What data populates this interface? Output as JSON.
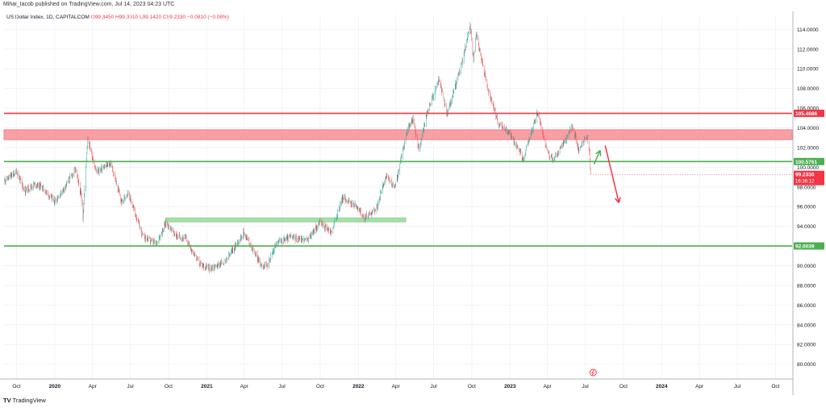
{
  "header": {
    "published": "Mihai_Iacob published on TradingView.com, Jul 14, 2023 04:23 UTC",
    "symbol": "US Dollar Index, 1D, CAPITALCOM",
    "ohlc": "O99.3450 H99.3910 L99.1420 C99.2330 −0.0810 (−0.08%)"
  },
  "footer": {
    "brand": "TradingView"
  },
  "chart_data": {
    "type": "candlestick",
    "ylim": [
      78.5,
      115.5
    ],
    "y_ticks": [
      "80.0000",
      "82.0000",
      "84.0000",
      "86.0000",
      "88.0000",
      "90.0000",
      "92.0000",
      "94.0000",
      "96.0000",
      "98.0000",
      "100.0000",
      "102.0000",
      "104.0000",
      "106.0000",
      "108.0000",
      "110.0000",
      "112.0000",
      "114.0000"
    ],
    "x_range": [
      "2019-09-01",
      "2024-11-10"
    ],
    "x_ticks": [
      {
        "date": "2019-10-01",
        "label": "Oct"
      },
      {
        "date": "2020-01-01",
        "label": "2020"
      },
      {
        "date": "2020-04-01",
        "label": "Apr"
      },
      {
        "date": "2020-07-01",
        "label": "Jul"
      },
      {
        "date": "2020-10-01",
        "label": "Oct"
      },
      {
        "date": "2021-01-01",
        "label": "2021"
      },
      {
        "date": "2021-04-01",
        "label": "Apr"
      },
      {
        "date": "2021-07-01",
        "label": "Jul"
      },
      {
        "date": "2021-10-01",
        "label": "Oct"
      },
      {
        "date": "2022-01-01",
        "label": "2022"
      },
      {
        "date": "2022-04-01",
        "label": "Apr"
      },
      {
        "date": "2022-07-01",
        "label": "Jul"
      },
      {
        "date": "2022-10-01",
        "label": "Oct"
      },
      {
        "date": "2023-01-01",
        "label": "2023"
      },
      {
        "date": "2023-04-01",
        "label": "Apr"
      },
      {
        "date": "2023-07-01",
        "label": "Jul"
      },
      {
        "date": "2023-10-01",
        "label": "Oct"
      },
      {
        "date": "2024-01-01",
        "label": "2024"
      },
      {
        "date": "2024-04-01",
        "label": "Apr"
      },
      {
        "date": "2024-07-01",
        "label": "Jul"
      },
      {
        "date": "2024-10-01",
        "label": "Oct"
      }
    ],
    "price_path": [
      [
        "2019-09-01",
        98.6
      ],
      [
        "2019-09-25",
        99.3
      ],
      [
        "2019-10-01",
        99.6
      ],
      [
        "2019-10-20",
        97.6
      ],
      [
        "2019-11-15",
        98.3
      ],
      [
        "2019-12-01",
        98.0
      ],
      [
        "2019-12-31",
        96.5
      ],
      [
        "2020-01-15",
        97.3
      ],
      [
        "2020-02-20",
        99.8
      ],
      [
        "2020-03-05",
        97.0
      ],
      [
        "2020-03-09",
        94.9
      ],
      [
        "2020-03-20",
        103.0
      ],
      [
        "2020-04-10",
        99.5
      ],
      [
        "2020-05-15",
        100.4
      ],
      [
        "2020-06-10",
        96.4
      ],
      [
        "2020-06-25",
        97.5
      ],
      [
        "2020-07-31",
        93.0
      ],
      [
        "2020-09-01",
        92.2
      ],
      [
        "2020-09-25",
        94.4
      ],
      [
        "2020-10-20",
        93.0
      ],
      [
        "2020-11-10",
        92.8
      ],
      [
        "2020-12-15",
        90.2
      ],
      [
        "2021-01-06",
        89.7
      ],
      [
        "2021-02-15",
        90.4
      ],
      [
        "2021-03-31",
        93.4
      ],
      [
        "2021-05-10",
        90.2
      ],
      [
        "2021-05-25",
        89.9
      ],
      [
        "2021-06-18",
        92.3
      ],
      [
        "2021-07-20",
        92.9
      ],
      [
        "2021-08-31",
        92.6
      ],
      [
        "2021-09-30",
        94.4
      ],
      [
        "2021-10-28",
        93.4
      ],
      [
        "2021-11-24",
        96.9
      ],
      [
        "2021-12-31",
        95.9
      ],
      [
        "2022-01-14",
        94.8
      ],
      [
        "2022-02-15",
        95.9
      ],
      [
        "2022-03-07",
        99.1
      ],
      [
        "2022-03-30",
        97.9
      ],
      [
        "2022-04-28",
        103.7
      ],
      [
        "2022-05-12",
        104.9
      ],
      [
        "2022-05-27",
        101.7
      ],
      [
        "2022-06-14",
        105.3
      ],
      [
        "2022-07-14",
        109.0
      ],
      [
        "2022-08-02",
        105.3
      ],
      [
        "2022-09-07",
        110.6
      ],
      [
        "2022-09-27",
        114.4
      ],
      [
        "2022-10-05",
        110.9
      ],
      [
        "2022-10-12",
        113.5
      ],
      [
        "2022-11-10",
        107.6
      ],
      [
        "2022-12-05",
        104.3
      ],
      [
        "2022-12-30",
        103.5
      ],
      [
        "2023-01-20",
        102.0
      ],
      [
        "2023-02-01",
        100.8
      ],
      [
        "2023-03-08",
        105.6
      ],
      [
        "2023-03-31",
        101.7
      ],
      [
        "2023-04-14",
        100.7
      ],
      [
        "2023-04-28",
        101.5
      ],
      [
        "2023-05-31",
        104.2
      ],
      [
        "2023-06-15",
        101.8
      ],
      [
        "2023-06-30",
        102.9
      ],
      [
        "2023-07-06",
        102.8
      ],
      [
        "2023-07-11",
        101.5
      ],
      [
        "2023-07-13",
        99.7
      ],
      [
        "2023-07-14",
        99.23
      ]
    ],
    "horizontal_levels": [
      {
        "value": 105.4686,
        "label": "105.4686",
        "color": "#f23645"
      },
      {
        "value": 100.5761,
        "label": "100.5761",
        "color": "#4caf50"
      },
      {
        "value": 92.0039,
        "label": "92.0039",
        "color": "#4caf50"
      }
    ],
    "zones": [
      {
        "low": 102.8,
        "high": 103.8,
        "start": "2019-09-01",
        "end": "2024-11-10",
        "color": "#f57f86"
      },
      {
        "low": 94.45,
        "high": 94.85,
        "start": "2020-09-25",
        "end": "2022-04-25",
        "color": "#8ed38f"
      }
    ],
    "last_price": {
      "value": 99.233,
      "label": "99.2330",
      "countdown": "16:36:12"
    },
    "arrows": [
      {
        "from": [
          "2023-07-22",
          100.3
        ],
        "to": [
          "2023-08-06",
          101.7
        ],
        "color": "#4caf50"
      },
      {
        "from": [
          "2023-08-18",
          102.2
        ],
        "to": [
          "2023-09-20",
          96.4
        ],
        "color": "#f23645"
      }
    ],
    "colors": {
      "up": "#26a69a",
      "down": "#ef5350",
      "grid": "#f0f3fa",
      "axis_text": "#131722"
    }
  }
}
